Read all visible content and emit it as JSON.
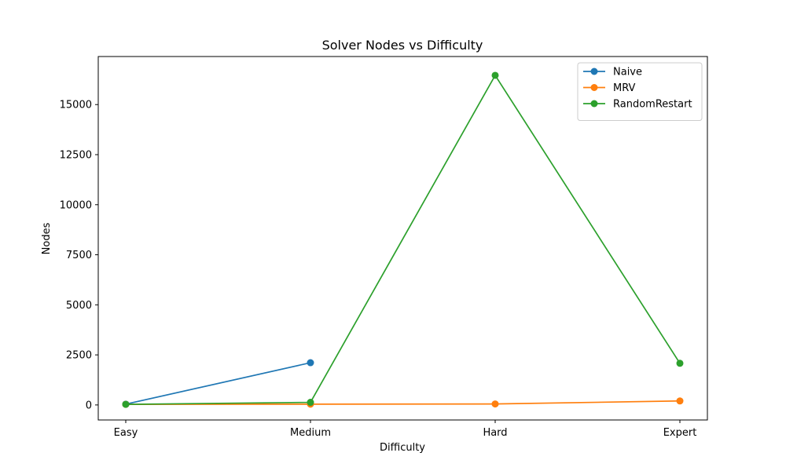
{
  "chart_data": {
    "type": "line",
    "title": "Solver Nodes vs Difficulty",
    "xlabel": "Difficulty",
    "ylabel": "Nodes",
    "categories": [
      "Easy",
      "Medium",
      "Hard",
      "Expert"
    ],
    "ylim": [
      -750,
      17400
    ],
    "yticks": [
      0,
      2500,
      5000,
      7500,
      10000,
      12500,
      15000
    ],
    "ytick_labels": [
      "0",
      "2500",
      "5000",
      "7500",
      "10000",
      "12500",
      "15000"
    ],
    "legend_position": "top-right",
    "grid": false,
    "series": [
      {
        "name": "Naive",
        "color": "#1f77b4",
        "values": [
          40,
          2110,
          null,
          null
        ]
      },
      {
        "name": "MRV",
        "color": "#ff7f0e",
        "values": [
          30,
          40,
          50,
          200
        ]
      },
      {
        "name": "RandomRestart",
        "color": "#2ca02c",
        "values": [
          30,
          130,
          16460,
          2080
        ]
      }
    ]
  }
}
